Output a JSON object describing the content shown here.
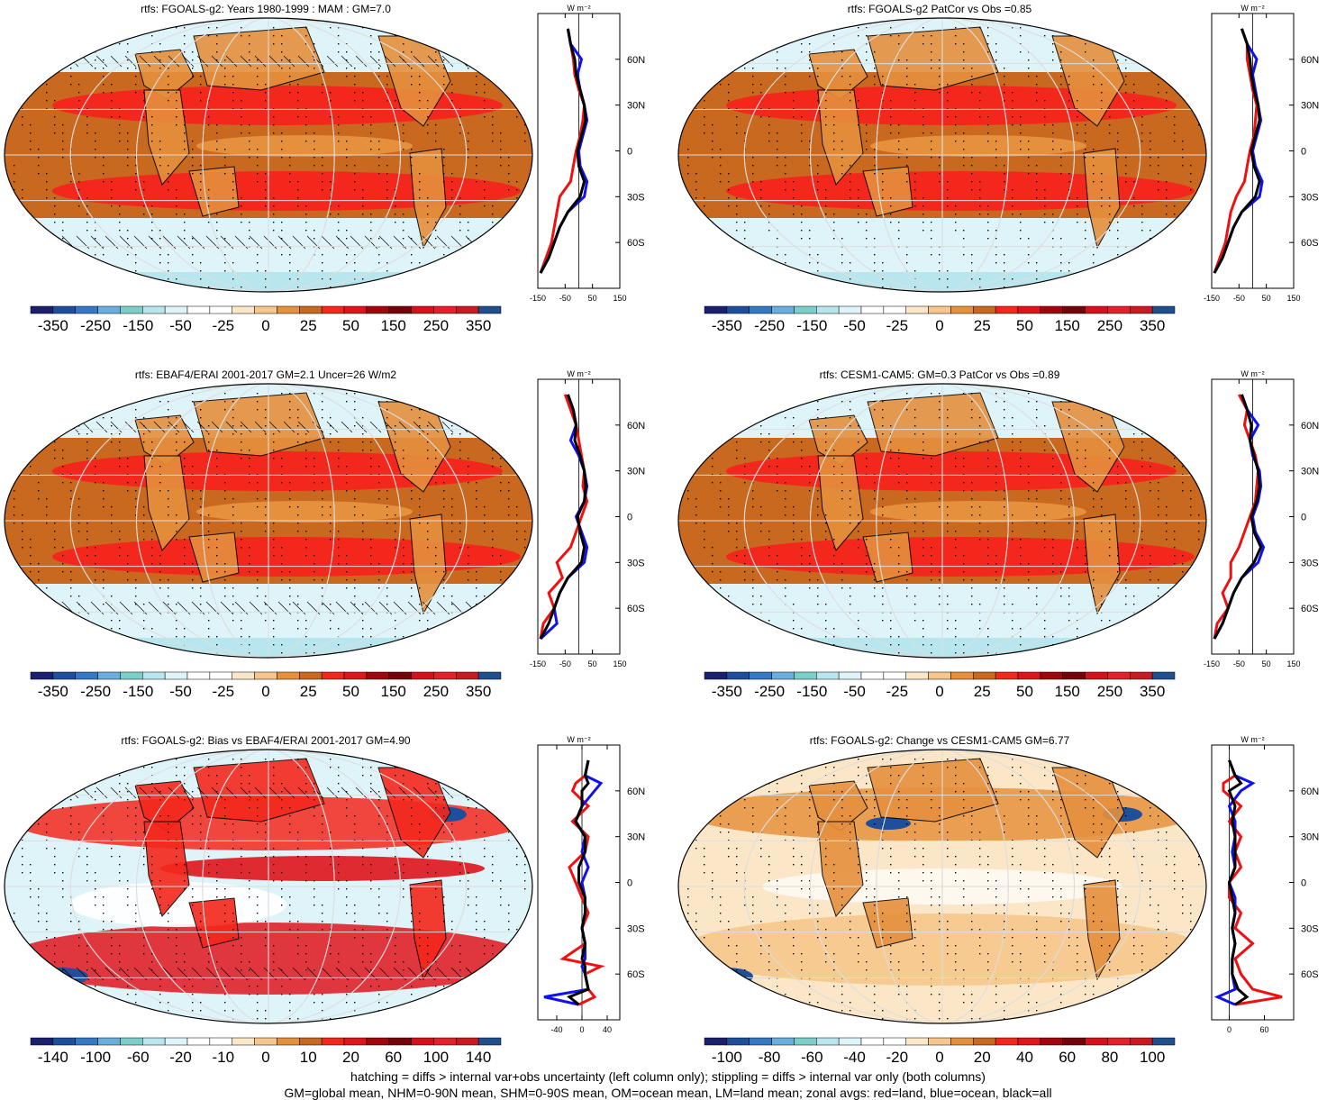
{
  "panels": [
    {
      "title": "rtfs: FGOALS-g2: Years 1980-1999 : MAM : GM=7.0",
      "colorbar": [
        "-350",
        "-250",
        "-150",
        "-50",
        "-25",
        "0",
        "25",
        "50",
        "150",
        "250",
        "350"
      ],
      "zonal_unit": "W m⁻²",
      "zonal_ticks": [
        "-150",
        "-50",
        "50",
        "150"
      ],
      "zonal_xrange": [
        -150,
        150
      ],
      "lat_labels": [
        "60N",
        "30N",
        "0",
        "30S",
        "60S"
      ],
      "map_style": "bias",
      "hatching": true
    },
    {
      "title": "rtfs: FGOALS-g2 PatCor vs Obs =0.85",
      "colorbar": [
        "-350",
        "-250",
        "-150",
        "-50",
        "-25",
        "0",
        "25",
        "50",
        "150",
        "250",
        "350"
      ],
      "zonal_unit": "W m⁻²",
      "zonal_ticks": [
        "-150",
        "-50",
        "50",
        "150"
      ],
      "zonal_xrange": [
        -150,
        150
      ],
      "lat_labels": [
        "60N",
        "30N",
        "0",
        "30S",
        "60S"
      ],
      "map_style": "bias",
      "hatching": false
    },
    {
      "title": "rtfs: EBAF4/ERAI 2001-2017 GM=2.1 Uncer=26 W/m2",
      "colorbar": [
        "-350",
        "-250",
        "-150",
        "-50",
        "-25",
        "0",
        "25",
        "50",
        "150",
        "250",
        "350"
      ],
      "zonal_unit": "W m⁻²",
      "zonal_ticks": [
        "-150",
        "-50",
        "50",
        "150"
      ],
      "zonal_xrange": [
        -150,
        150
      ],
      "lat_labels": [
        "60N",
        "30N",
        "0",
        "30S",
        "60S"
      ],
      "map_style": "bias",
      "hatching": true
    },
    {
      "title": "rtfs: CESM1-CAM5: GM=0.3 PatCor vs Obs =0.89",
      "colorbar": [
        "-350",
        "-250",
        "-150",
        "-50",
        "-25",
        "0",
        "25",
        "50",
        "150",
        "250",
        "350"
      ],
      "zonal_unit": "W m⁻²",
      "zonal_ticks": [
        "-150",
        "-50",
        "50",
        "150"
      ],
      "zonal_xrange": [
        -150,
        150
      ],
      "lat_labels": [
        "60N",
        "30N",
        "0",
        "30S",
        "60S"
      ],
      "map_style": "bias",
      "hatching": false
    },
    {
      "title": "rtfs: FGOALS-g2: Bias vs EBAF4/ERAI 2001-2017 GM=4.90",
      "colorbar": [
        "-140",
        "-100",
        "-60",
        "-20",
        "-10",
        "0",
        "10",
        "20",
        "60",
        "100",
        "140"
      ],
      "zonal_unit": "W m⁻²",
      "zonal_ticks": [
        "-40",
        "0",
        "40"
      ],
      "zonal_xrange": [
        -70,
        60
      ],
      "lat_labels": [
        "60N",
        "30N",
        "0",
        "30S",
        "60S"
      ],
      "map_style": "diff",
      "hatching": true
    },
    {
      "title": "rtfs: FGOALS-g2: Change vs CESM1-CAM5 GM=6.77",
      "colorbar": [
        "-100",
        "-80",
        "-60",
        "-40",
        "-20",
        "0",
        "20",
        "40",
        "60",
        "80",
        "100"
      ],
      "zonal_unit": "W m⁻²",
      "zonal_ticks": [
        "0",
        "60"
      ],
      "zonal_xrange": [
        -30,
        110
      ],
      "lat_labels": [
        "60N",
        "30N",
        "0",
        "30S",
        "60S"
      ],
      "map_style": "change",
      "hatching": false
    }
  ],
  "palette": [
    "#1a1f6e",
    "#1e4f9c",
    "#3579c4",
    "#6aaee0",
    "#7ccfc8",
    "#b8e6ee",
    "#dff4f8",
    "#ffffff",
    "#ffffff",
    "#fbe7c8",
    "#f6c68c",
    "#e5903d",
    "#c8691f",
    "#f4271c",
    "#e0141c",
    "#a1060c",
    "#74030a",
    "#d6111c",
    "#e3202b",
    "#c91a22",
    "#1f4f8c"
  ],
  "footer": {
    "line1": "hatching = diffs > internal var+obs uncertainty (left column only); stippling = diffs > internal var only (both columns)",
    "line2": "GM=global mean, NHM=0-90N mean, SHM=0-90S mean, OM=ocean mean, LM=land mean; zonal avgs: red=land, blue=ocean, black=all"
  },
  "chart_data": [
    {
      "type": "heatmap",
      "title": "rtfs: FGOALS-g2: Years 1980-1999 : MAM : GM=7.0",
      "zonal_avgs": {
        "lat": [
          80,
          70,
          60,
          50,
          40,
          30,
          20,
          10,
          0,
          -10,
          -20,
          -30,
          -40,
          -50,
          -60,
          -70,
          -80
        ],
        "land": [
          -40,
          -30,
          -20,
          -15,
          0,
          20,
          15,
          5,
          -10,
          -20,
          -30,
          -70,
          -80,
          -90,
          -100,
          -120,
          -140
        ],
        "ocean": [
          -40,
          -30,
          10,
          -5,
          5,
          20,
          30,
          15,
          0,
          5,
          30,
          20,
          -40,
          -70,
          -90,
          -110,
          -140
        ],
        "all": [
          -40,
          -30,
          -15,
          -10,
          5,
          20,
          25,
          10,
          -5,
          0,
          20,
          5,
          -40,
          -70,
          -90,
          -110,
          -140
        ]
      }
    },
    {
      "type": "heatmap",
      "title": "rtfs: FGOALS-g2 PatCor vs Obs =0.85",
      "zonal_avgs": {
        "lat": [
          80,
          70,
          60,
          50,
          40,
          30,
          20,
          10,
          0,
          -10,
          -20,
          -30,
          -40,
          -50,
          -60,
          -70,
          -80
        ],
        "land": [
          -40,
          -20,
          -20,
          -10,
          0,
          15,
          10,
          5,
          -10,
          -20,
          -30,
          -60,
          -80,
          -90,
          -100,
          -120,
          -140
        ],
        "ocean": [
          -40,
          -20,
          15,
          0,
          10,
          20,
          30,
          15,
          0,
          10,
          35,
          25,
          -40,
          -70,
          -90,
          -110,
          -140
        ],
        "all": [
          -40,
          -20,
          -10,
          -5,
          5,
          20,
          25,
          10,
          -5,
          5,
          25,
          10,
          -40,
          -70,
          -90,
          -110,
          -140
        ]
      }
    },
    {
      "type": "heatmap",
      "title": "rtfs: EBAF4/ERAI 2001-2017 GM=2.1 Uncer=26 W/m2",
      "zonal_avgs": {
        "lat": [
          80,
          70,
          60,
          50,
          40,
          30,
          20,
          10,
          0,
          -10,
          -20,
          -30,
          -40,
          -50,
          -60,
          -70,
          -80
        ],
        "land": [
          -50,
          -30,
          -10,
          0,
          10,
          20,
          15,
          30,
          10,
          -10,
          -30,
          -80,
          -60,
          -110,
          -90,
          -130,
          -140
        ],
        "ocean": [
          -40,
          -20,
          -10,
          -30,
          0,
          20,
          30,
          20,
          -10,
          10,
          30,
          20,
          -40,
          -70,
          -90,
          -80,
          -140
        ],
        "all": [
          -40,
          -20,
          -10,
          -15,
          5,
          20,
          25,
          20,
          -5,
          5,
          20,
          10,
          -40,
          -70,
          -90,
          -110,
          -140
        ]
      }
    },
    {
      "type": "heatmap",
      "title": "rtfs: CESM1-CAM5: GM=0.3 PatCor vs Obs =0.89",
      "zonal_avgs": {
        "lat": [
          80,
          70,
          60,
          50,
          40,
          30,
          20,
          10,
          0,
          -10,
          -20,
          -30,
          -40,
          -50,
          -60,
          -70,
          -80
        ],
        "land": [
          -50,
          -20,
          -30,
          -10,
          10,
          20,
          15,
          10,
          -10,
          -30,
          -50,
          -80,
          -80,
          -110,
          -90,
          -130,
          -140
        ],
        "ocean": [
          -40,
          -20,
          20,
          -10,
          0,
          25,
          30,
          20,
          0,
          10,
          40,
          20,
          -40,
          -70,
          -90,
          -110,
          -140
        ],
        "all": [
          -40,
          -20,
          -5,
          -10,
          5,
          20,
          25,
          15,
          -5,
          5,
          30,
          5,
          -40,
          -70,
          -90,
          -110,
          -140
        ]
      }
    },
    {
      "type": "heatmap",
      "title": "rtfs: FGOALS-g2: Bias vs EBAF4/ERAI 2001-2017 GM=4.90",
      "zonal_avgs": {
        "lat": [
          80,
          70,
          65,
          60,
          50,
          40,
          30,
          20,
          10,
          0,
          -10,
          -20,
          -30,
          -40,
          -50,
          -55,
          -60,
          -70,
          -75,
          -80
        ],
        "land": [
          10,
          5,
          -10,
          -15,
          10,
          -15,
          10,
          5,
          -20,
          -10,
          0,
          10,
          0,
          5,
          -30,
          30,
          5,
          10,
          20,
          -5
        ],
        "ocean": [
          10,
          5,
          30,
          20,
          0,
          -10,
          5,
          0,
          10,
          0,
          5,
          5,
          0,
          5,
          5,
          0,
          5,
          10,
          -60,
          -5
        ],
        "all": [
          10,
          5,
          10,
          0,
          0,
          -10,
          5,
          5,
          -5,
          -5,
          5,
          5,
          0,
          5,
          0,
          5,
          5,
          10,
          -20,
          -5
        ]
      }
    },
    {
      "type": "heatmap",
      "title": "rtfs: FGOALS-g2: Change vs CESM1-CAM5 GM=6.77",
      "zonal_avgs": {
        "lat": [
          80,
          70,
          65,
          60,
          50,
          40,
          30,
          20,
          10,
          0,
          -10,
          -20,
          -30,
          -40,
          -50,
          -60,
          -70,
          -75,
          -80
        ],
        "land": [
          0,
          10,
          -10,
          -10,
          20,
          0,
          20,
          10,
          20,
          0,
          0,
          20,
          10,
          40,
          10,
          20,
          40,
          90,
          10
        ],
        "ocean": [
          0,
          10,
          40,
          20,
          0,
          10,
          10,
          5,
          10,
          0,
          10,
          10,
          5,
          10,
          5,
          5,
          10,
          -20,
          10
        ],
        "all": [
          0,
          10,
          20,
          0,
          10,
          5,
          10,
          10,
          10,
          0,
          5,
          10,
          5,
          10,
          5,
          5,
          15,
          30,
          10
        ]
      }
    }
  ]
}
